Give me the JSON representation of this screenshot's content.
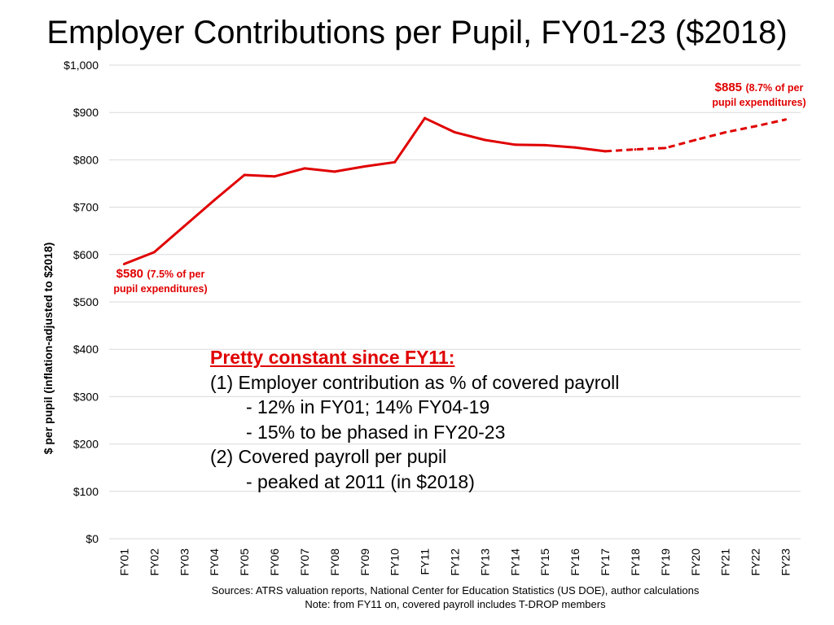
{
  "chart_data": {
    "type": "line",
    "title": "Employer Contributions per Pupil, FY01-23 ($2018)",
    "ylabel": "$ per pupil (inflation-adjusted to $2018)",
    "xlabel": "",
    "ylim": [
      0,
      1000
    ],
    "yticks": [
      0,
      100,
      200,
      300,
      400,
      500,
      600,
      700,
      800,
      900,
      1000
    ],
    "ytick_labels": [
      "$0",
      "$100",
      "$200",
      "$300",
      "$400",
      "$500",
      "$600",
      "$700",
      "$800",
      "$900",
      "$1,000"
    ],
    "categories": [
      "FY01",
      "FY02",
      "FY03",
      "FY04",
      "FY05",
      "FY06",
      "FY07",
      "FY08",
      "FY09",
      "FY10",
      "FY11",
      "FY12",
      "FY13",
      "FY14",
      "FY15",
      "FY16",
      "FY17",
      "FY18",
      "FY19",
      "FY20",
      "FY21",
      "FY22",
      "FY23"
    ],
    "series": [
      {
        "style": "solid",
        "color": "#e00000",
        "x": [
          "FY01",
          "FY02",
          "FY03",
          "FY04",
          "FY05",
          "FY06",
          "FY07",
          "FY08",
          "FY09",
          "FY10",
          "FY11",
          "FY12",
          "FY13",
          "FY14",
          "FY15",
          "FY16",
          "FY17"
        ],
        "values": [
          580,
          605,
          660,
          715,
          768,
          765,
          782,
          775,
          786,
          795,
          888,
          858,
          842,
          832,
          831,
          826,
          818
        ]
      },
      {
        "style": "dashed",
        "color": "#e00000",
        "x": [
          "FY17",
          "FY18",
          "FY19",
          "FY20",
          "FY21",
          "FY22",
          "FY23"
        ],
        "values": [
          818,
          822,
          825,
          842,
          858,
          871,
          885
        ]
      }
    ],
    "grid": "horizontal",
    "legend": "none"
  },
  "annotations": {
    "start_value": "$580",
    "start_note_line1": "(7.5% of per",
    "start_note_line2": "pupil expenditures)",
    "end_value": "$885",
    "end_note_line1": "(8.7% of per",
    "end_note_line2": "pupil expenditures)"
  },
  "textbox": {
    "header": "Pretty constant since FY11:",
    "line1": "(1) Employer contribution as % of covered payroll",
    "line2": "- 12% in FY01; 14% FY04-19",
    "line3": "- 15% to be phased in FY20-23",
    "line4": "(2) Covered payroll per pupil",
    "line5": "- peaked at 2011 (in $2018)"
  },
  "footer": {
    "sources": "Sources:  ATRS valuation reports, National Center for Education Statistics (US DOE), author calculations",
    "note": "Note:  from FY11 on, covered payroll includes T-DROP members"
  },
  "colors": {
    "series": "#e00000",
    "grid": "#d9d9d9",
    "text": "#000000"
  }
}
